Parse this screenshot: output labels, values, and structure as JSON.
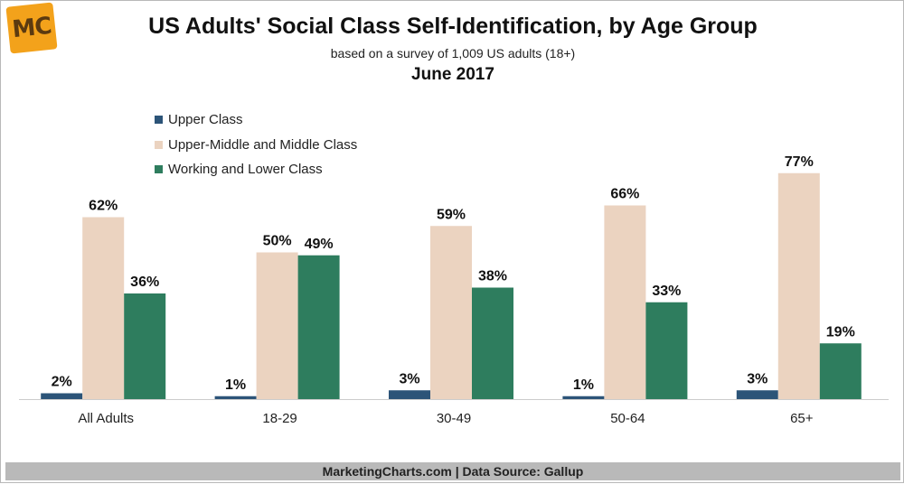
{
  "header": {
    "logo_text": "MC",
    "title": "US Adults' Social Class Self-Identification, by Age Group",
    "subtitle": "based on a survey of 1,009 US adults (18+)",
    "date": "June 2017"
  },
  "footer": {
    "source": "MarketingCharts.com | Data Source: Gallup"
  },
  "colors": {
    "upper": "#2c5478",
    "middle": "#ebd3c0",
    "working": "#2e7d5e",
    "axis": "#cccccc",
    "footer_bg": "#b9b9b9"
  },
  "chart_data": {
    "type": "bar",
    "title": "US Adults' Social Class Self-Identification, by Age Group",
    "subtitle": "based on a survey of 1,009 US adults (18+)",
    "xlabel": "",
    "ylabel": "",
    "ylim": [
      0,
      80
    ],
    "categories": [
      "All Adults",
      "18-29",
      "30-49",
      "50-64",
      "65+"
    ],
    "series": [
      {
        "name": "Upper Class",
        "values": [
          2,
          1,
          3,
          1,
          3
        ],
        "labels": [
          "2%",
          "1%",
          "3%",
          "1%",
          "3%"
        ],
        "color": "#2c5478"
      },
      {
        "name": "Upper-Middle and Middle Class",
        "values": [
          62,
          50,
          59,
          66,
          77
        ],
        "labels": [
          "62%",
          "50%",
          "59%",
          "66%",
          "77%"
        ],
        "color": "#ebd3c0"
      },
      {
        "name": "Working and Lower Class",
        "values": [
          36,
          49,
          38,
          33,
          19
        ],
        "labels": [
          "36%",
          "49%",
          "38%",
          "33%",
          "19%"
        ],
        "color": "#2e7d5e"
      }
    ],
    "legend_position": "top-left",
    "grid": false
  }
}
